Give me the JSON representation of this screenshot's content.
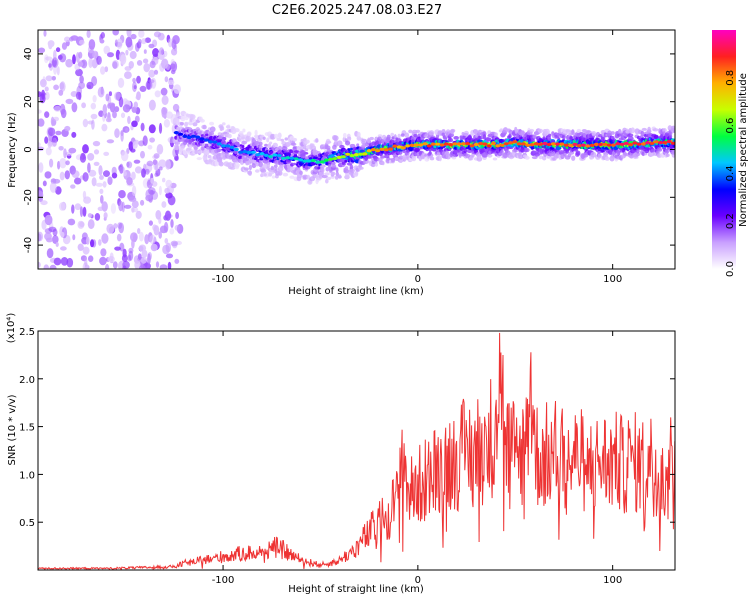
{
  "chart_data": [
    {
      "type": "heatmap",
      "title": "C2E6.2025.247.08.03.E27",
      "xlabel": "Height of straight line (km)",
      "ylabel": "Frequency (Hz)",
      "xlim": [
        -195,
        132
      ],
      "ylim": [
        -50,
        50
      ],
      "xticks": [
        -100,
        0,
        100
      ],
      "yticks": [
        -40,
        -20,
        0,
        20,
        40
      ],
      "noise_region_x": [
        -195,
        -122
      ],
      "ridge": {
        "x": [
          -124,
          -110,
          -100,
          -90,
          -80,
          -70,
          -60,
          -55,
          -50,
          -40,
          -30,
          -20,
          -10,
          0,
          10,
          20,
          30,
          40,
          50,
          60,
          70,
          80,
          90,
          100,
          110,
          120,
          132
        ],
        "freq_hz": [
          7,
          4,
          2,
          -1,
          -2,
          -3,
          -4,
          -5,
          -5,
          -3,
          -2,
          0,
          1,
          2,
          2,
          2,
          2,
          2,
          3,
          2,
          2,
          2,
          2,
          2,
          2,
          3,
          3
        ],
        "normalized_amplitude": [
          0.35,
          0.4,
          0.45,
          0.45,
          0.5,
          0.5,
          0.5,
          0.55,
          0.55,
          0.7,
          0.75,
          0.85,
          0.85,
          0.9,
          0.9,
          0.9,
          0.9,
          0.9,
          0.9,
          0.95,
          0.95,
          0.95,
          0.95,
          0.95,
          0.95,
          0.95,
          0.95
        ]
      },
      "colorbar": {
        "label": "Normalized spectral amplitude",
        "range": [
          0,
          1
        ],
        "ticks": [
          "0.0",
          "0.2",
          "0.4",
          "0.6",
          "0.8"
        ],
        "colors": [
          "#ffffff",
          "#c9a0ff",
          "#6a00ff",
          "#0000ff",
          "#00c8ff",
          "#00ff40",
          "#c8ff00",
          "#ffb000",
          "#ff2020",
          "#ff00c0"
        ]
      }
    },
    {
      "type": "line",
      "xlabel": "Height of straight line (km)",
      "ylabel": "SNR (10 * v/v)",
      "yscale_label": "(x10⁴)",
      "xlim": [
        -195,
        132
      ],
      "ylim": [
        0,
        2.5
      ],
      "xticks": [
        -100,
        0,
        100
      ],
      "yticks": [
        "0.5",
        "1.0",
        "1.5",
        "2.0",
        "2.5"
      ],
      "color": "#ee3333",
      "series": [
        {
          "name": "SNR",
          "x": [
            -195,
            -180,
            -160,
            -140,
            -125,
            -120,
            -110,
            -100,
            -90,
            -80,
            -75,
            -70,
            -60,
            -50,
            -45,
            -40,
            -35,
            -30,
            -25,
            -20,
            -15,
            -10,
            -8,
            -5,
            0,
            5,
            10,
            15,
            20,
            25,
            30,
            35,
            40,
            42,
            45,
            50,
            55,
            58,
            60,
            65,
            70,
            75,
            80,
            85,
            90,
            95,
            100,
            105,
            110,
            115,
            120,
            125,
            130,
            132
          ],
          "y": [
            0.02,
            0.02,
            0.02,
            0.03,
            0.04,
            0.08,
            0.12,
            0.16,
            0.2,
            0.22,
            0.28,
            0.25,
            0.12,
            0.06,
            0.08,
            0.12,
            0.2,
            0.3,
            0.45,
            0.55,
            0.7,
            0.85,
            1.5,
            0.9,
            1.0,
            1.1,
            1.2,
            1.3,
            1.35,
            1.4,
            1.45,
            1.5,
            1.7,
            2.5,
            1.5,
            1.4,
            1.45,
            2.3,
            1.4,
            1.35,
            1.4,
            1.4,
            1.35,
            1.3,
            1.25,
            1.3,
            1.3,
            1.25,
            1.3,
            1.25,
            1.3,
            1.2,
            1.3,
            1.35
          ]
        }
      ]
    }
  ]
}
